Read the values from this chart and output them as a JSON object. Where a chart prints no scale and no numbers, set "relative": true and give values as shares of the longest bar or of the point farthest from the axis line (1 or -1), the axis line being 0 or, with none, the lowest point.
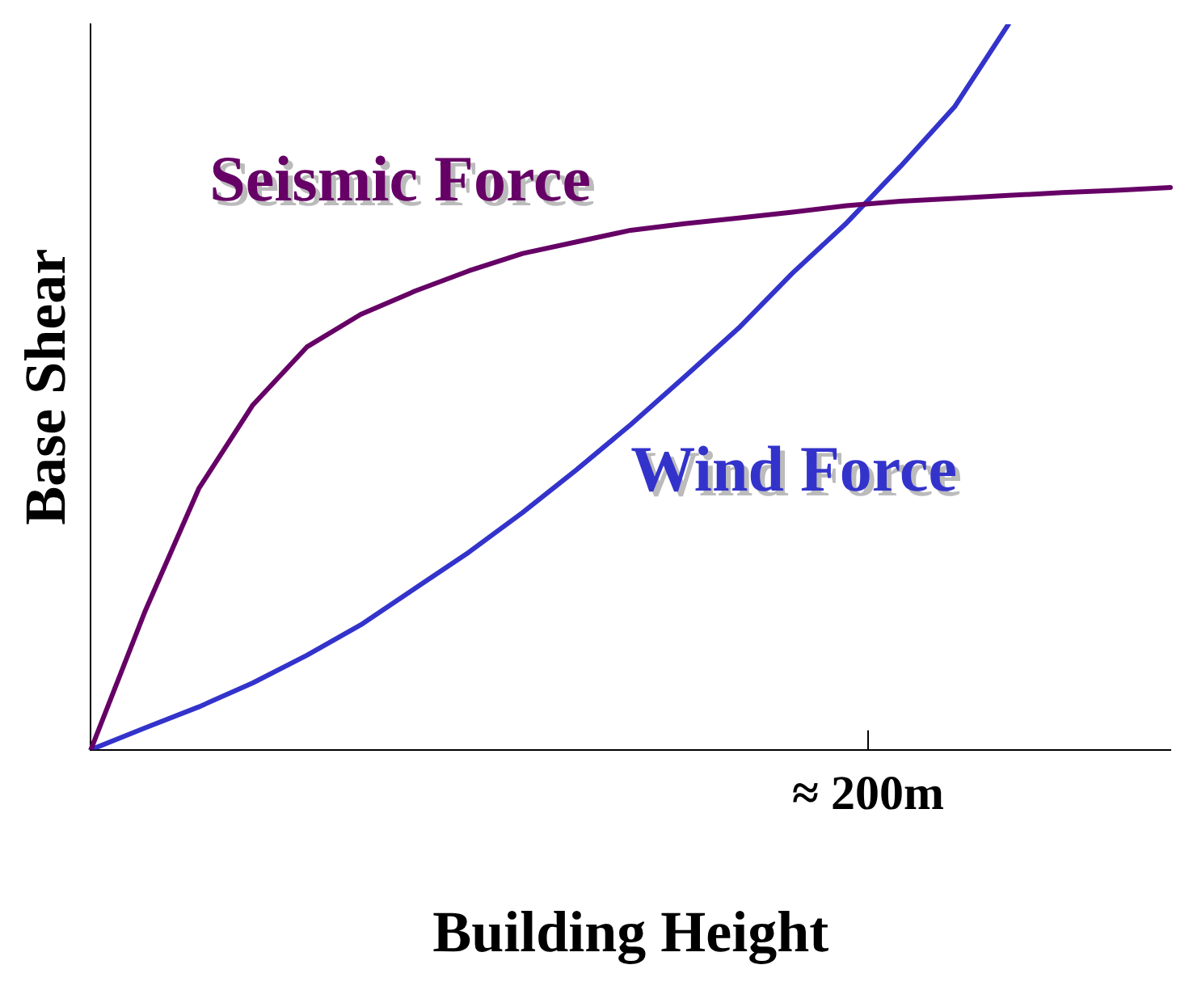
{
  "chart_data": {
    "type": "line",
    "relative": true,
    "xlabel": "Building Height",
    "ylabel": "Base Shear",
    "annotations": [
      "≈ 200m"
    ],
    "grid": false,
    "legend": false,
    "marker": "none",
    "line_style": "solid",
    "categories": [
      null,
      null,
      null,
      null,
      null,
      null,
      null,
      null,
      null,
      null,
      null,
      null,
      null,
      null,
      null,
      null,
      null,
      null,
      null,
      null,
      null
    ],
    "series": [
      {
        "name": "Seismic Force",
        "color": "#660066",
        "values": [
          0,
          0.19,
          0.36,
          0.475,
          0.555,
          0.6,
          0.632,
          0.66,
          0.684,
          0.7,
          0.716,
          0.725,
          0.733,
          0.741,
          0.75,
          0.756,
          0.76,
          0.764,
          0.768,
          0.771,
          0.775
        ]
      },
      {
        "name": "Wind Force",
        "color": "#3333cc",
        "values": [
          0,
          0.03,
          0.059,
          0.092,
          0.13,
          0.172,
          0.222,
          0.272,
          0.327,
          0.386,
          0.448,
          0.514,
          0.581,
          0.657,
          0.726,
          0.804,
          0.886,
          1,
          null,
          null,
          null
        ]
      }
    ]
  }
}
